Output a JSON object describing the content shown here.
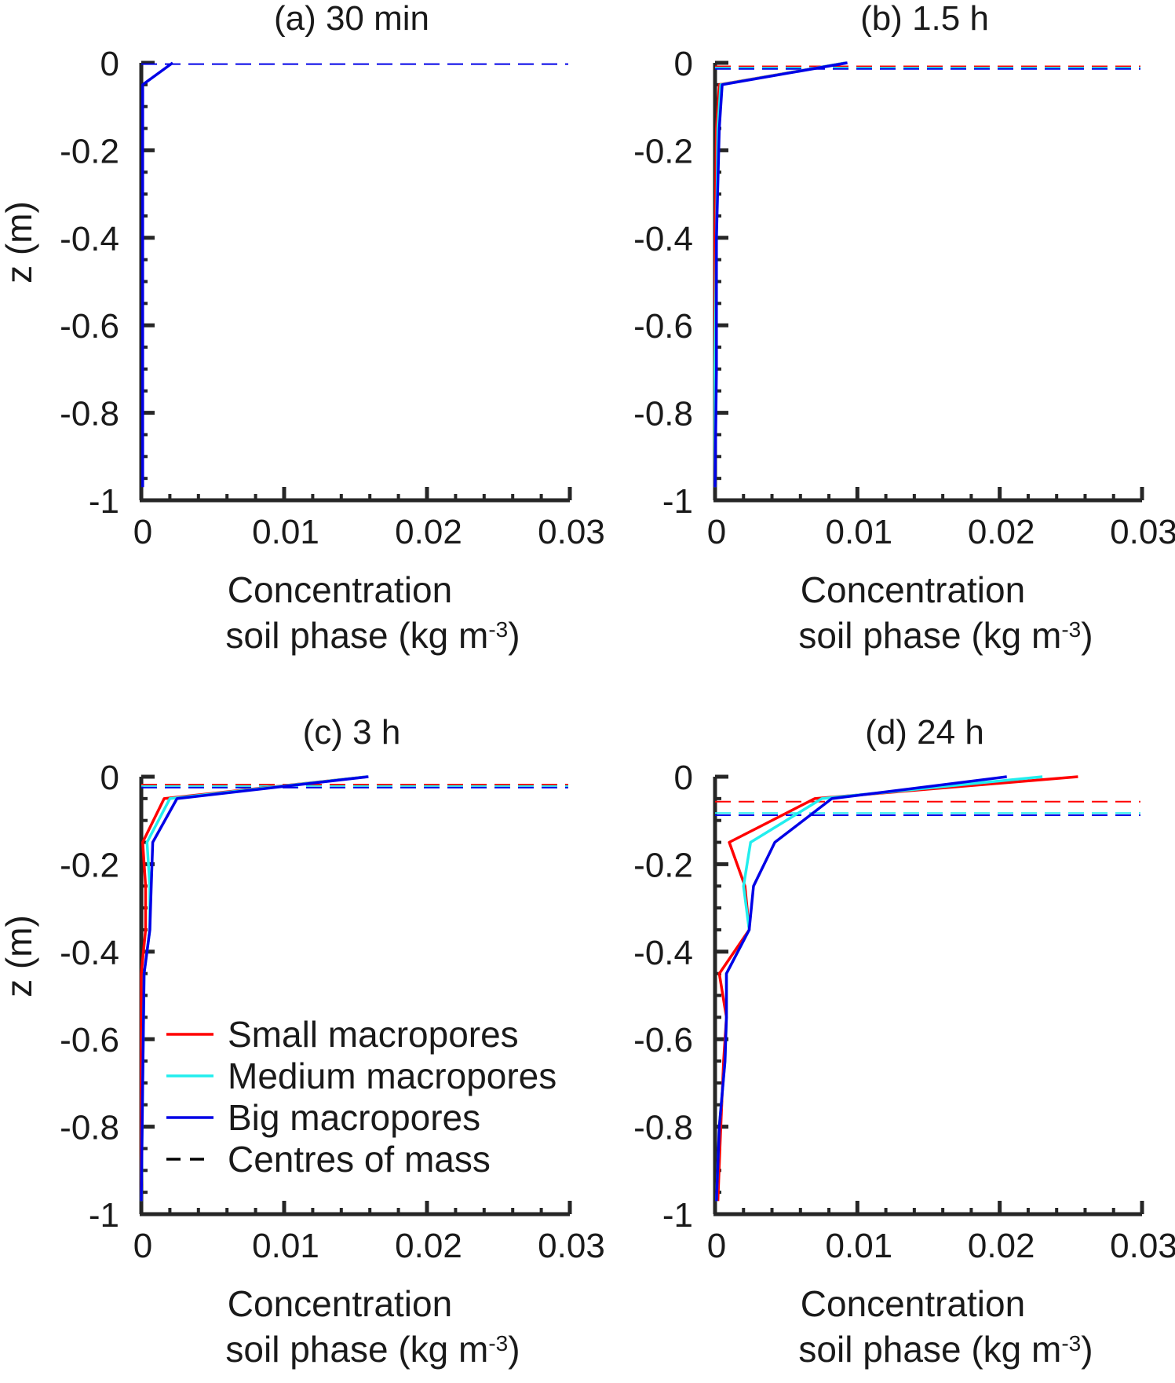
{
  "legend": {
    "entries": [
      {
        "label": "Small macropores",
        "color": "#ff0000",
        "style": "solid"
      },
      {
        "label": "Medium macropores",
        "color": "#22eeee",
        "style": "solid"
      },
      {
        "label": "Big macropores",
        "color": "#0000e6",
        "style": "solid"
      },
      {
        "label": "Centres of mass",
        "color": "#000000",
        "style": "dashed"
      }
    ]
  },
  "chart_data": [
    {
      "type": "line",
      "title": "(a) 30 min",
      "xlabel": "Concentration",
      "xlabel_line2": "soil phase (kg m",
      "xlabel_sup": "-3",
      "xlabel_close": ")",
      "ylabel": "z (m)",
      "xlim": [
        0,
        0.03
      ],
      "ylim": [
        -1,
        0
      ],
      "xticks": [
        0,
        0.01,
        0.02,
        0.03
      ],
      "xtick_labels": [
        "0",
        "0.01",
        "0.02",
        "0.03"
      ],
      "yticks": [
        0,
        -0.2,
        -0.4,
        -0.6,
        -0.8,
        -1
      ],
      "ytick_labels": [
        "0",
        "-0.2",
        "-0.4",
        "-0.6",
        "-0.8",
        "-1"
      ],
      "series": [
        {
          "name": "Big macropores",
          "color": "#0000e6",
          "x": [
            0.0022,
            0.0001,
            0.0001,
            0.0001,
            0.0001
          ],
          "z": [
            0,
            -0.05,
            -0.2,
            -0.6,
            -0.97
          ]
        }
      ],
      "centres_of_mass": [
        {
          "color": "#0000e6",
          "z": -0.003
        }
      ]
    },
    {
      "type": "line",
      "title": "(b) 1.5 h",
      "xlabel": "Concentration",
      "xlabel_line2": "soil phase (kg m",
      "xlabel_sup": "-3",
      "xlabel_close": ")",
      "ylabel": "",
      "xlim": [
        0,
        0.03
      ],
      "ylim": [
        -1,
        0
      ],
      "xticks": [
        0,
        0.01,
        0.02,
        0.03
      ],
      "xtick_labels": [
        "0",
        "0.01",
        "0.02",
        "0.03"
      ],
      "yticks": [
        0,
        -0.2,
        -0.4,
        -0.6,
        -0.8,
        -1
      ],
      "ytick_labels": [
        "0",
        "-0.2",
        "-0.4",
        "-0.6",
        "-0.8",
        "-1"
      ],
      "series": [
        {
          "name": "Small macropores",
          "color": "#ff0000",
          "x": [
            0.0092,
            0.0003,
            0.0001,
            0.0,
            0.0,
            0.0
          ],
          "z": [
            0,
            -0.05,
            -0.15,
            -0.4,
            -0.7,
            -0.97
          ]
        },
        {
          "name": "Medium macropores",
          "color": "#22eeee",
          "x": [
            0.0092,
            0.0004,
            0.0002,
            0.0001,
            0.0,
            0.0
          ],
          "z": [
            0,
            -0.05,
            -0.15,
            -0.4,
            -0.7,
            -0.97
          ]
        },
        {
          "name": "Big macropores",
          "color": "#0000e6",
          "x": [
            0.0093,
            0.0005,
            0.0003,
            0.0001,
            0.0001,
            0.0
          ],
          "z": [
            0,
            -0.05,
            -0.15,
            -0.4,
            -0.7,
            -0.97
          ]
        }
      ],
      "centres_of_mass": [
        {
          "color": "#ff0000",
          "z": -0.008
        },
        {
          "color": "#22eeee",
          "z": -0.011
        },
        {
          "color": "#0000e6",
          "z": -0.014
        }
      ]
    },
    {
      "type": "line",
      "title": "(c) 3 h",
      "xlabel": "Concentration",
      "xlabel_line2": "soil phase (kg m",
      "xlabel_sup": "-3",
      "xlabel_close": ")",
      "ylabel": "z (m)",
      "xlim": [
        0,
        0.03
      ],
      "ylim": [
        -1,
        0
      ],
      "xticks": [
        0,
        0.01,
        0.02,
        0.03
      ],
      "xtick_labels": [
        "0",
        "0.01",
        "0.02",
        "0.03"
      ],
      "yticks": [
        0,
        -0.2,
        -0.4,
        -0.6,
        -0.8,
        -1
      ],
      "ytick_labels": [
        "0",
        "-0.2",
        "-0.4",
        "-0.6",
        "-0.8",
        "-1"
      ],
      "series": [
        {
          "name": "Small macropores",
          "color": "#ff0000",
          "x": [
            0.0158,
            0.0016,
            0.0001,
            0.0003,
            0.0003,
            0.0,
            0.0,
            0.0
          ],
          "z": [
            0,
            -0.05,
            -0.15,
            -0.25,
            -0.35,
            -0.45,
            -0.7,
            -0.97
          ]
        },
        {
          "name": "Medium macropores",
          "color": "#22eeee",
          "x": [
            0.0158,
            0.002,
            0.0004,
            0.0006,
            0.0006,
            0.0002,
            0.0001,
            0.0
          ],
          "z": [
            0,
            -0.05,
            -0.15,
            -0.25,
            -0.35,
            -0.45,
            -0.7,
            -0.97
          ]
        },
        {
          "name": "Big macropores",
          "color": "#0000e6",
          "x": [
            0.0159,
            0.0025,
            0.0008,
            0.0007,
            0.0006,
            0.0002,
            0.0001,
            0.0
          ],
          "z": [
            0,
            -0.05,
            -0.15,
            -0.25,
            -0.35,
            -0.45,
            -0.7,
            -0.97
          ]
        }
      ],
      "centres_of_mass": [
        {
          "color": "#ff0000",
          "z": -0.018
        },
        {
          "color": "#22eeee",
          "z": -0.021
        },
        {
          "color": "#0000e6",
          "z": -0.025
        }
      ]
    },
    {
      "type": "line",
      "title": "(d) 24 h",
      "xlabel": "Concentration",
      "xlabel_line2": "soil phase (kg m",
      "xlabel_sup": "-3",
      "xlabel_close": ")",
      "ylabel": "",
      "xlim": [
        0,
        0.03
      ],
      "ylim": [
        -1,
        0
      ],
      "xticks": [
        0,
        0.01,
        0.02,
        0.03
      ],
      "xtick_labels": [
        "0",
        "0.01",
        "0.02",
        "0.03"
      ],
      "yticks": [
        0,
        -0.2,
        -0.4,
        -0.6,
        -0.8,
        -1
      ],
      "ytick_labels": [
        "0",
        "-0.2",
        "-0.4",
        "-0.6",
        "-0.8",
        "-1"
      ],
      "series": [
        {
          "name": "Small macropores",
          "color": "#ff0000",
          "x": [
            0.0255,
            0.007,
            0.001,
            0.0021,
            0.0024,
            0.0003,
            0.0008,
            0.0006,
            0.0004,
            0.0002
          ],
          "z": [
            0,
            -0.05,
            -0.15,
            -0.25,
            -0.35,
            -0.45,
            -0.55,
            -0.65,
            -0.8,
            -0.97
          ]
        },
        {
          "name": "Medium macropores",
          "color": "#22eeee",
          "x": [
            0.023,
            0.0075,
            0.0025,
            0.002,
            0.0024,
            0.0008,
            0.0008,
            0.0007,
            0.0003,
            0.0001
          ],
          "z": [
            0,
            -0.05,
            -0.15,
            -0.25,
            -0.35,
            -0.45,
            -0.55,
            -0.65,
            -0.8,
            -0.97
          ]
        },
        {
          "name": "Big macropores",
          "color": "#0000e6",
          "x": [
            0.0205,
            0.0082,
            0.0042,
            0.0027,
            0.0024,
            0.0008,
            0.0008,
            0.0007,
            0.0003,
            0.0001
          ],
          "z": [
            0,
            -0.05,
            -0.15,
            -0.25,
            -0.35,
            -0.45,
            -0.55,
            -0.65,
            -0.8,
            -0.97
          ]
        }
      ],
      "centres_of_mass": [
        {
          "color": "#ff0000",
          "z": -0.057
        },
        {
          "color": "#22eeee",
          "z": -0.083
        },
        {
          "color": "#0000e6",
          "z": -0.088
        }
      ]
    }
  ]
}
